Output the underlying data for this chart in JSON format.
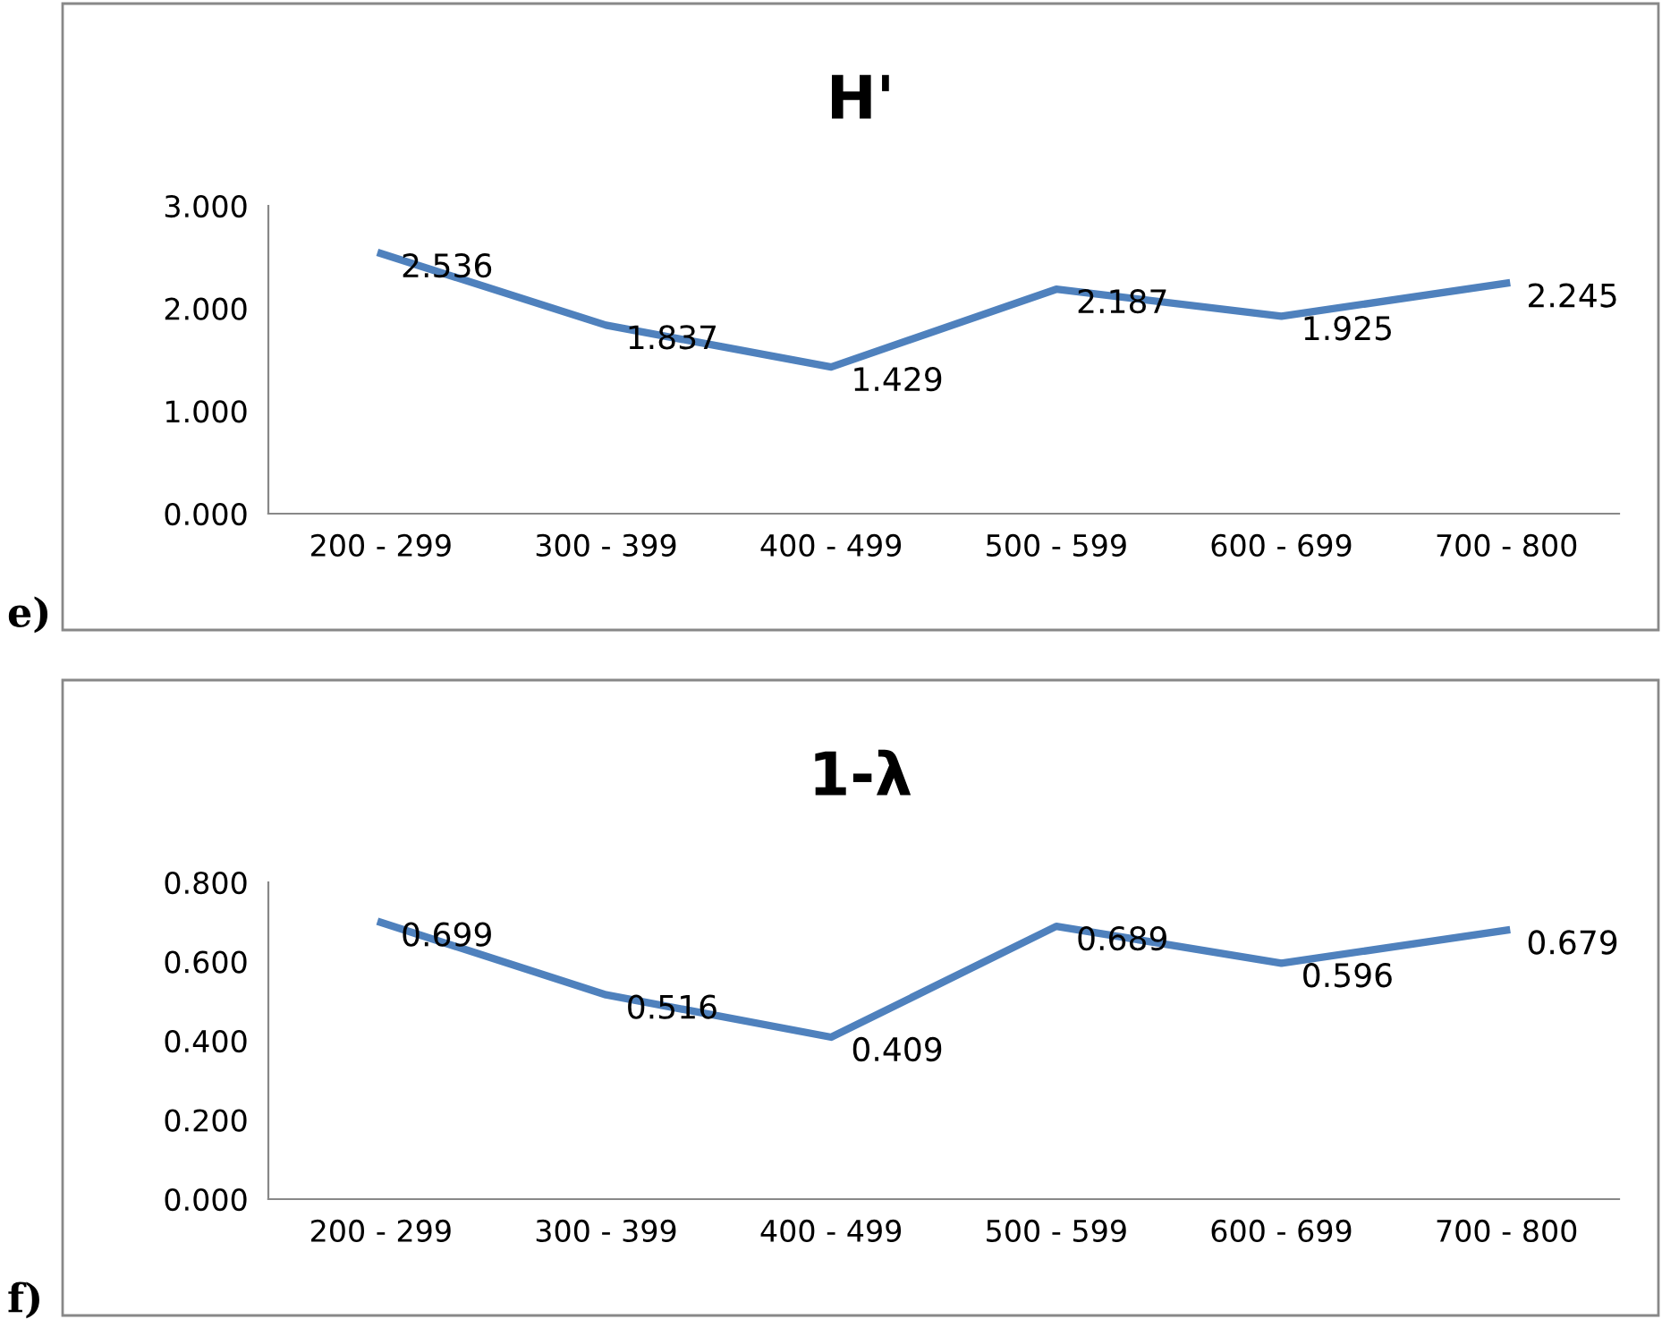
{
  "chart_data": [
    {
      "type": "line",
      "title": "H'",
      "categories": [
        "200 - 299",
        "300 - 399",
        "400 - 499",
        "500 - 599",
        "600 - 699",
        "700 - 800"
      ],
      "series": [
        {
          "color": "#4f81bd",
          "values": [
            2.536,
            1.837,
            1.429,
            2.187,
            1.925,
            2.245
          ]
        }
      ],
      "ylim": [
        0,
        3
      ],
      "yticks": [
        {
          "value": 0,
          "label": "0.000"
        },
        {
          "value": 1,
          "label": "1.000"
        },
        {
          "value": 2,
          "label": "2.000"
        },
        {
          "value": 3,
          "label": "3.000"
        }
      ],
      "data_labels": true,
      "grid": false,
      "legend": false,
      "marker": "none",
      "line_style": "solid",
      "annotations": [
        "e)"
      ]
    },
    {
      "type": "line",
      "title": "1-λ",
      "categories": [
        "200 - 299",
        "300 - 399",
        "400 - 499",
        "500 - 599",
        "600 - 699",
        "700 - 800"
      ],
      "series": [
        {
          "color": "#4f81bd",
          "values": [
            0.699,
            0.516,
            0.409,
            0.689,
            0.596,
            0.679
          ]
        }
      ],
      "ylim": [
        0,
        0.8
      ],
      "yticks": [
        {
          "value": 0,
          "label": "0.000"
        },
        {
          "value": 0.2,
          "label": "0.200"
        },
        {
          "value": 0.4,
          "label": "0.400"
        },
        {
          "value": 0.6,
          "label": "0.600"
        },
        {
          "value": 0.8,
          "label": "0.800"
        }
      ],
      "data_labels": true,
      "grid": false,
      "legend": false,
      "marker": "none",
      "line_style": "solid",
      "annotations": [
        "f)"
      ]
    }
  ]
}
